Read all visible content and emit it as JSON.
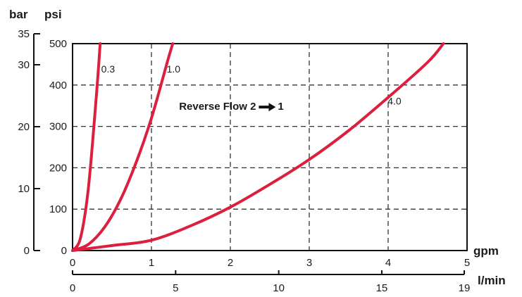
{
  "chart_data": {
    "type": "line",
    "units": {
      "bar": "bar",
      "psi": "psi",
      "gpm": "gpm",
      "lmin": "l/min"
    },
    "x_gpm": {
      "range": [
        0,
        5
      ],
      "ticks": [
        "0",
        "1",
        "2",
        "3",
        "4",
        "5"
      ]
    },
    "x_lmin": {
      "range": [
        0,
        19
      ],
      "ticks": [
        {
          "v": 0,
          "t": "0"
        },
        {
          "v": 5,
          "t": "5"
        },
        {
          "v": 10,
          "t": "10"
        },
        {
          "v": 15,
          "t": "15"
        },
        {
          "v": 19,
          "t": "19"
        }
      ]
    },
    "y_psi": {
      "range": [
        0,
        500
      ],
      "ticks": [
        "0",
        "100",
        "200",
        "300",
        "400",
        "500"
      ]
    },
    "y_bar": {
      "range": [
        0,
        35
      ],
      "ticks": [
        {
          "v": 0,
          "t": "0"
        },
        {
          "v": 10,
          "t": "10"
        },
        {
          "v": 20,
          "t": "20"
        },
        {
          "v": 30,
          "t": "30"
        },
        {
          "v": 35,
          "t": "35"
        }
      ]
    },
    "grid": true,
    "annotation": {
      "text": "Reverse Flow 2",
      "suffix": "1",
      "x": 1.35,
      "y": 340
    },
    "series": [
      {
        "name": "0.3",
        "color": "#dc1f3c",
        "label_at": [
          0.45,
          430
        ],
        "x": [
          0,
          0.1,
          0.2,
          0.3,
          0.35
        ],
        "y": [
          0,
          30,
          150,
          370,
          500
        ]
      },
      {
        "name": "1.0",
        "color": "#dc1f3c",
        "label_at": [
          1.28,
          430
        ],
        "x": [
          0,
          0.2,
          0.4,
          0.6,
          0.8,
          1.0,
          1.2,
          1.27
        ],
        "y": [
          0,
          15,
          55,
          120,
          210,
          320,
          455,
          500
        ]
      },
      {
        "name": "4.0",
        "color": "#dc1f3c",
        "label_at": [
          4.08,
          353
        ],
        "x": [
          0,
          0.5,
          1.0,
          1.5,
          2.0,
          2.5,
          3.0,
          3.5,
          4.0,
          4.5,
          4.7
        ],
        "y": [
          0,
          12,
          25,
          60,
          105,
          160,
          220,
          290,
          370,
          455,
          500
        ]
      }
    ]
  }
}
